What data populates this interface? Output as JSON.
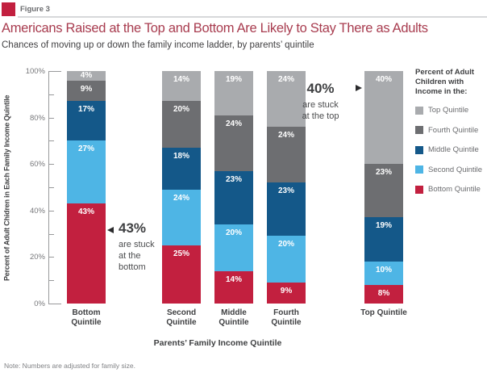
{
  "figure_label": "Figure 3",
  "title": "Americans Raised at the Top and Bottom Are Likely to Stay There as Adults",
  "subtitle": "Chances of moving up or down the family income ladder, by parents’ quintile",
  "note": "Note: Numbers are adjusted for family size.",
  "colors": {
    "accent_red": "#c2203f",
    "title_red": "#a83c4f",
    "light_blue": "#4eb5e5",
    "dark_blue": "#145889",
    "dark_gray": "#6d6e71",
    "light_gray": "#a9abae"
  },
  "chart_data": {
    "type": "bar",
    "stacked": true,
    "xlabel": "Parents’ Family Income Quintile",
    "ylabel": "Percent of Adult Chidren in Each Family Income Quintile",
    "ylim": [
      0,
      100
    ],
    "ytick_step": 10,
    "ytick_label_step": 20,
    "ytick_labels": [
      "0%",
      "20%",
      "40%",
      "60%",
      "80%",
      "100%"
    ],
    "grid": false,
    "categories": [
      "Bottom Quintile",
      "Second Quintile",
      "Middle Quintile",
      "Fourth Quintile",
      "Top Quintile"
    ],
    "series": [
      {
        "name": "Bottom Quintile",
        "color": "#c2203f",
        "values": [
          43,
          25,
          14,
          9,
          8
        ]
      },
      {
        "name": "Second Quintile",
        "color": "#4eb5e5",
        "values": [
          27,
          24,
          20,
          20,
          10
        ]
      },
      {
        "name": "Middle Quintile",
        "color": "#145889",
        "values": [
          17,
          18,
          23,
          23,
          19
        ]
      },
      {
        "name": "Fourth Quintile",
        "color": "#6d6e71",
        "values": [
          9,
          20,
          24,
          24,
          23
        ]
      },
      {
        "name": "Top Quintile",
        "color": "#a9abae",
        "values": [
          4,
          14,
          19,
          24,
          40
        ]
      }
    ],
    "legend": {
      "position": "right",
      "title": "Percent of Adult Children with Income in the:",
      "items": [
        "Top Quintile",
        "Fourth Quintile",
        "Middle Quintile",
        "Second Quintile",
        "Bottom Quintile"
      ]
    }
  },
  "annotations": [
    {
      "value": "43%",
      "lines": [
        "are stuck",
        "at the",
        "bottom"
      ],
      "points": "left"
    },
    {
      "value": "40%",
      "lines": [
        "are stuck",
        "at the top"
      ],
      "points": "right"
    }
  ]
}
